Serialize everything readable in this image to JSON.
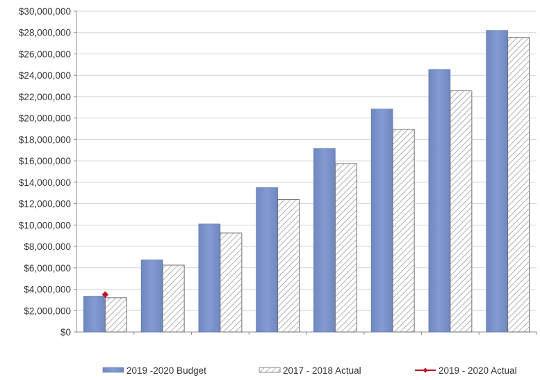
{
  "chart_data": {
    "type": "bar",
    "title": "",
    "xlabel": "",
    "ylabel": "",
    "ylim": [
      0,
      30000000
    ],
    "yticks": [
      0,
      2000000,
      4000000,
      6000000,
      8000000,
      10000000,
      12000000,
      14000000,
      16000000,
      18000000,
      20000000,
      22000000,
      24000000,
      26000000,
      28000000,
      30000000
    ],
    "ytick_labels": [
      "$0",
      "$2,000,000",
      "$4,000,000",
      "$6,000,000",
      "$8,000,000",
      "$10,000,000",
      "$12,000,000",
      "$14,000,000",
      "$16,000,000",
      "$18,000,000",
      "$20,000,000",
      "$22,000,000",
      "$24,000,000",
      "$26,000,000",
      "$28,000,000",
      "$30,000,000"
    ],
    "categories": [
      "",
      "",
      "",
      "",
      "",
      "",
      "",
      ""
    ],
    "grid": true,
    "legend_position": "bottom",
    "series": [
      {
        "name": "2019 -2020 Budget",
        "kind": "bar",
        "color": "#7b93c9",
        "values": [
          3350000,
          6750000,
          10100000,
          13500000,
          17150000,
          20850000,
          24550000,
          28200000
        ]
      },
      {
        "name": "2017 - 2018 Actual",
        "kind": "bar-hatched",
        "color": "#8a8a8a",
        "values": [
          3200000,
          6250000,
          9250000,
          12400000,
          15750000,
          18950000,
          22550000,
          27550000
        ]
      },
      {
        "name": "2019 - 2020 Actual",
        "kind": "line-marker",
        "color": "#c0142a",
        "values": [
          3500000,
          null,
          null,
          null,
          null,
          null,
          null,
          null
        ]
      }
    ]
  }
}
